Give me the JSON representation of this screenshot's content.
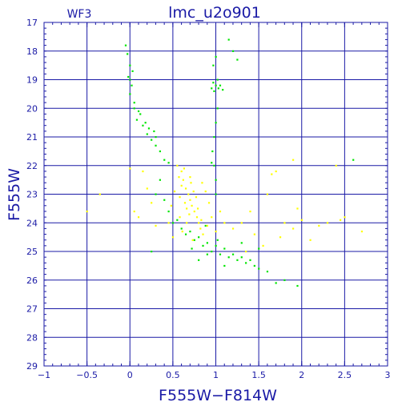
{
  "chart_data": {
    "type": "scatter",
    "title": "lmc_u2o901",
    "chip_label": "WF3",
    "xlabel": "F555W−F814W",
    "ylabel": "F555W",
    "xlim": [
      -1,
      3
    ],
    "ylim": [
      29,
      17
    ],
    "y_inverted": true,
    "grid": true,
    "x_ticks": [
      -1,
      -0.5,
      0,
      0.5,
      1,
      1.5,
      2,
      2.5,
      3
    ],
    "x_tick_labels": [
      "−1",
      "−0.5",
      "0",
      "0.5",
      "1",
      "1.5",
      "2",
      "2.5",
      "3"
    ],
    "y_ticks": [
      17,
      18,
      19,
      20,
      21,
      22,
      23,
      24,
      25,
      26,
      27,
      28,
      29
    ],
    "y_tick_labels": [
      "17",
      "18",
      "19",
      "20",
      "21",
      "22",
      "23",
      "24",
      "25",
      "26",
      "27",
      "28",
      "29"
    ],
    "colors": {
      "axis": "#1a1aa6",
      "series_1": "#00e600",
      "series_2": "#ffff00"
    },
    "series": [
      {
        "color": "series_1",
        "points": [
          [
            -0.05,
            17.8
          ],
          [
            -0.03,
            18.1
          ],
          [
            0.0,
            18.5
          ],
          [
            -0.02,
            18.9
          ],
          [
            0.02,
            19.2
          ],
          [
            0.0,
            19.5
          ],
          [
            0.05,
            19.8
          ],
          [
            0.1,
            20.1
          ],
          [
            0.08,
            20.4
          ],
          [
            0.15,
            20.6
          ],
          [
            0.2,
            20.9
          ],
          [
            0.25,
            21.1
          ],
          [
            0.3,
            21.3
          ],
          [
            0.35,
            21.5
          ],
          [
            0.4,
            21.8
          ],
          [
            0.45,
            21.9
          ],
          [
            0.12,
            20.2
          ],
          [
            0.18,
            20.5
          ],
          [
            0.22,
            20.7
          ],
          [
            0.05,
            20.0
          ],
          [
            0.28,
            20.8
          ],
          [
            0.3,
            21.0
          ],
          [
            0.0,
            19.0
          ],
          [
            0.03,
            18.7
          ],
          [
            0.97,
            19.1
          ],
          [
            1.0,
            19.2
          ],
          [
            1.03,
            19.3
          ],
          [
            0.98,
            19.4
          ],
          [
            1.05,
            19.2
          ],
          [
            0.95,
            19.3
          ],
          [
            1.02,
            19.0
          ],
          [
            1.08,
            19.35
          ],
          [
            0.97,
            18.5
          ],
          [
            1.0,
            18.2
          ],
          [
            1.02,
            20.0
          ],
          [
            1.0,
            20.5
          ],
          [
            0.98,
            21.0
          ],
          [
            0.96,
            21.5
          ],
          [
            0.95,
            21.9
          ],
          [
            1.0,
            22.5
          ],
          [
            1.2,
            18.0
          ],
          [
            1.15,
            17.6
          ],
          [
            1.25,
            18.3
          ],
          [
            0.7,
            24.3
          ],
          [
            0.8,
            24.5
          ],
          [
            0.9,
            24.7
          ],
          [
            1.0,
            24.8
          ],
          [
            1.1,
            24.9
          ],
          [
            1.2,
            25.1
          ],
          [
            1.3,
            25.2
          ],
          [
            1.4,
            25.3
          ],
          [
            0.6,
            24.2
          ],
          [
            0.5,
            24.0
          ],
          [
            0.75,
            24.6
          ],
          [
            0.85,
            24.8
          ],
          [
            0.95,
            25.0
          ],
          [
            1.05,
            25.1
          ],
          [
            1.15,
            25.2
          ],
          [
            1.35,
            25.4
          ],
          [
            1.5,
            25.6
          ],
          [
            1.6,
            25.7
          ],
          [
            1.8,
            26.0
          ],
          [
            1.95,
            26.2
          ],
          [
            0.65,
            24.4
          ],
          [
            0.55,
            23.9
          ],
          [
            0.45,
            23.6
          ],
          [
            0.4,
            23.2
          ],
          [
            1.25,
            25.3
          ],
          [
            0.9,
            25.1
          ],
          [
            1.1,
            25.5
          ],
          [
            1.45,
            25.5
          ],
          [
            0.3,
            23.0
          ],
          [
            0.88,
            24.1
          ],
          [
            1.02,
            24.6
          ],
          [
            1.7,
            26.1
          ],
          [
            0.72,
            24.9
          ],
          [
            1.5,
            24.9
          ],
          [
            0.35,
            22.5
          ],
          [
            0.98,
            22.0
          ],
          [
            1.0,
            23.0
          ],
          [
            2.6,
            21.8
          ],
          [
            0.25,
            25.0
          ],
          [
            1.3,
            24.7
          ],
          [
            0.8,
            25.3
          ]
        ]
      },
      {
        "color": "series_2",
        "points": [
          [
            0.55,
            22.0
          ],
          [
            0.6,
            22.2
          ],
          [
            0.62,
            22.5
          ],
          [
            0.65,
            22.8
          ],
          [
            0.68,
            23.0
          ],
          [
            0.7,
            23.2
          ],
          [
            0.72,
            23.4
          ],
          [
            0.75,
            23.6
          ],
          [
            0.78,
            23.8
          ],
          [
            0.8,
            24.0
          ],
          [
            0.82,
            24.2
          ],
          [
            0.85,
            24.4
          ],
          [
            0.6,
            22.7
          ],
          [
            0.58,
            23.1
          ],
          [
            0.66,
            23.5
          ],
          [
            0.7,
            22.4
          ],
          [
            0.74,
            22.9
          ],
          [
            0.64,
            23.3
          ],
          [
            0.77,
            23.1
          ],
          [
            0.69,
            23.7
          ],
          [
            0.63,
            22.1
          ],
          [
            0.71,
            22.6
          ],
          [
            0.79,
            23.5
          ],
          [
            0.83,
            23.9
          ],
          [
            0.57,
            22.4
          ],
          [
            0.66,
            24.0
          ],
          [
            0.9,
            24.1
          ],
          [
            0.95,
            23.8
          ],
          [
            1.0,
            24.3
          ],
          [
            1.1,
            24.0
          ],
          [
            1.2,
            24.2
          ],
          [
            1.3,
            24.0
          ],
          [
            1.4,
            23.6
          ],
          [
            1.6,
            23.0
          ],
          [
            1.7,
            22.2
          ],
          [
            1.8,
            24.0
          ],
          [
            1.9,
            24.2
          ],
          [
            2.0,
            23.9
          ],
          [
            2.2,
            24.1
          ],
          [
            2.5,
            23.8
          ],
          [
            2.7,
            24.3
          ],
          [
            2.1,
            24.6
          ],
          [
            1.75,
            24.5
          ],
          [
            1.55,
            24.8
          ],
          [
            1.95,
            23.5
          ],
          [
            2.3,
            24.0
          ],
          [
            0.5,
            24.5
          ],
          [
            0.45,
            24.0
          ],
          [
            0.1,
            23.8
          ],
          [
            0.05,
            23.6
          ],
          [
            0.2,
            22.8
          ],
          [
            0.25,
            23.3
          ],
          [
            0.3,
            24.1
          ],
          [
            -0.35,
            23.0
          ],
          [
            -0.5,
            23.6
          ],
          [
            0.0,
            22.1
          ],
          [
            0.15,
            22.2
          ],
          [
            1.65,
            22.3
          ],
          [
            1.9,
            21.8
          ],
          [
            2.4,
            22.0
          ],
          [
            2.45,
            23.9
          ],
          [
            1.35,
            25.0
          ],
          [
            1.45,
            24.4
          ],
          [
            0.88,
            22.9
          ],
          [
            0.92,
            23.3
          ],
          [
            1.05,
            23.6
          ],
          [
            0.52,
            22.9
          ],
          [
            0.48,
            23.4
          ],
          [
            0.84,
            22.6
          ],
          [
            0.58,
            23.8
          ],
          [
            0.61,
            24.3
          ],
          [
            0.73,
            24.6
          ]
        ]
      }
    ]
  }
}
